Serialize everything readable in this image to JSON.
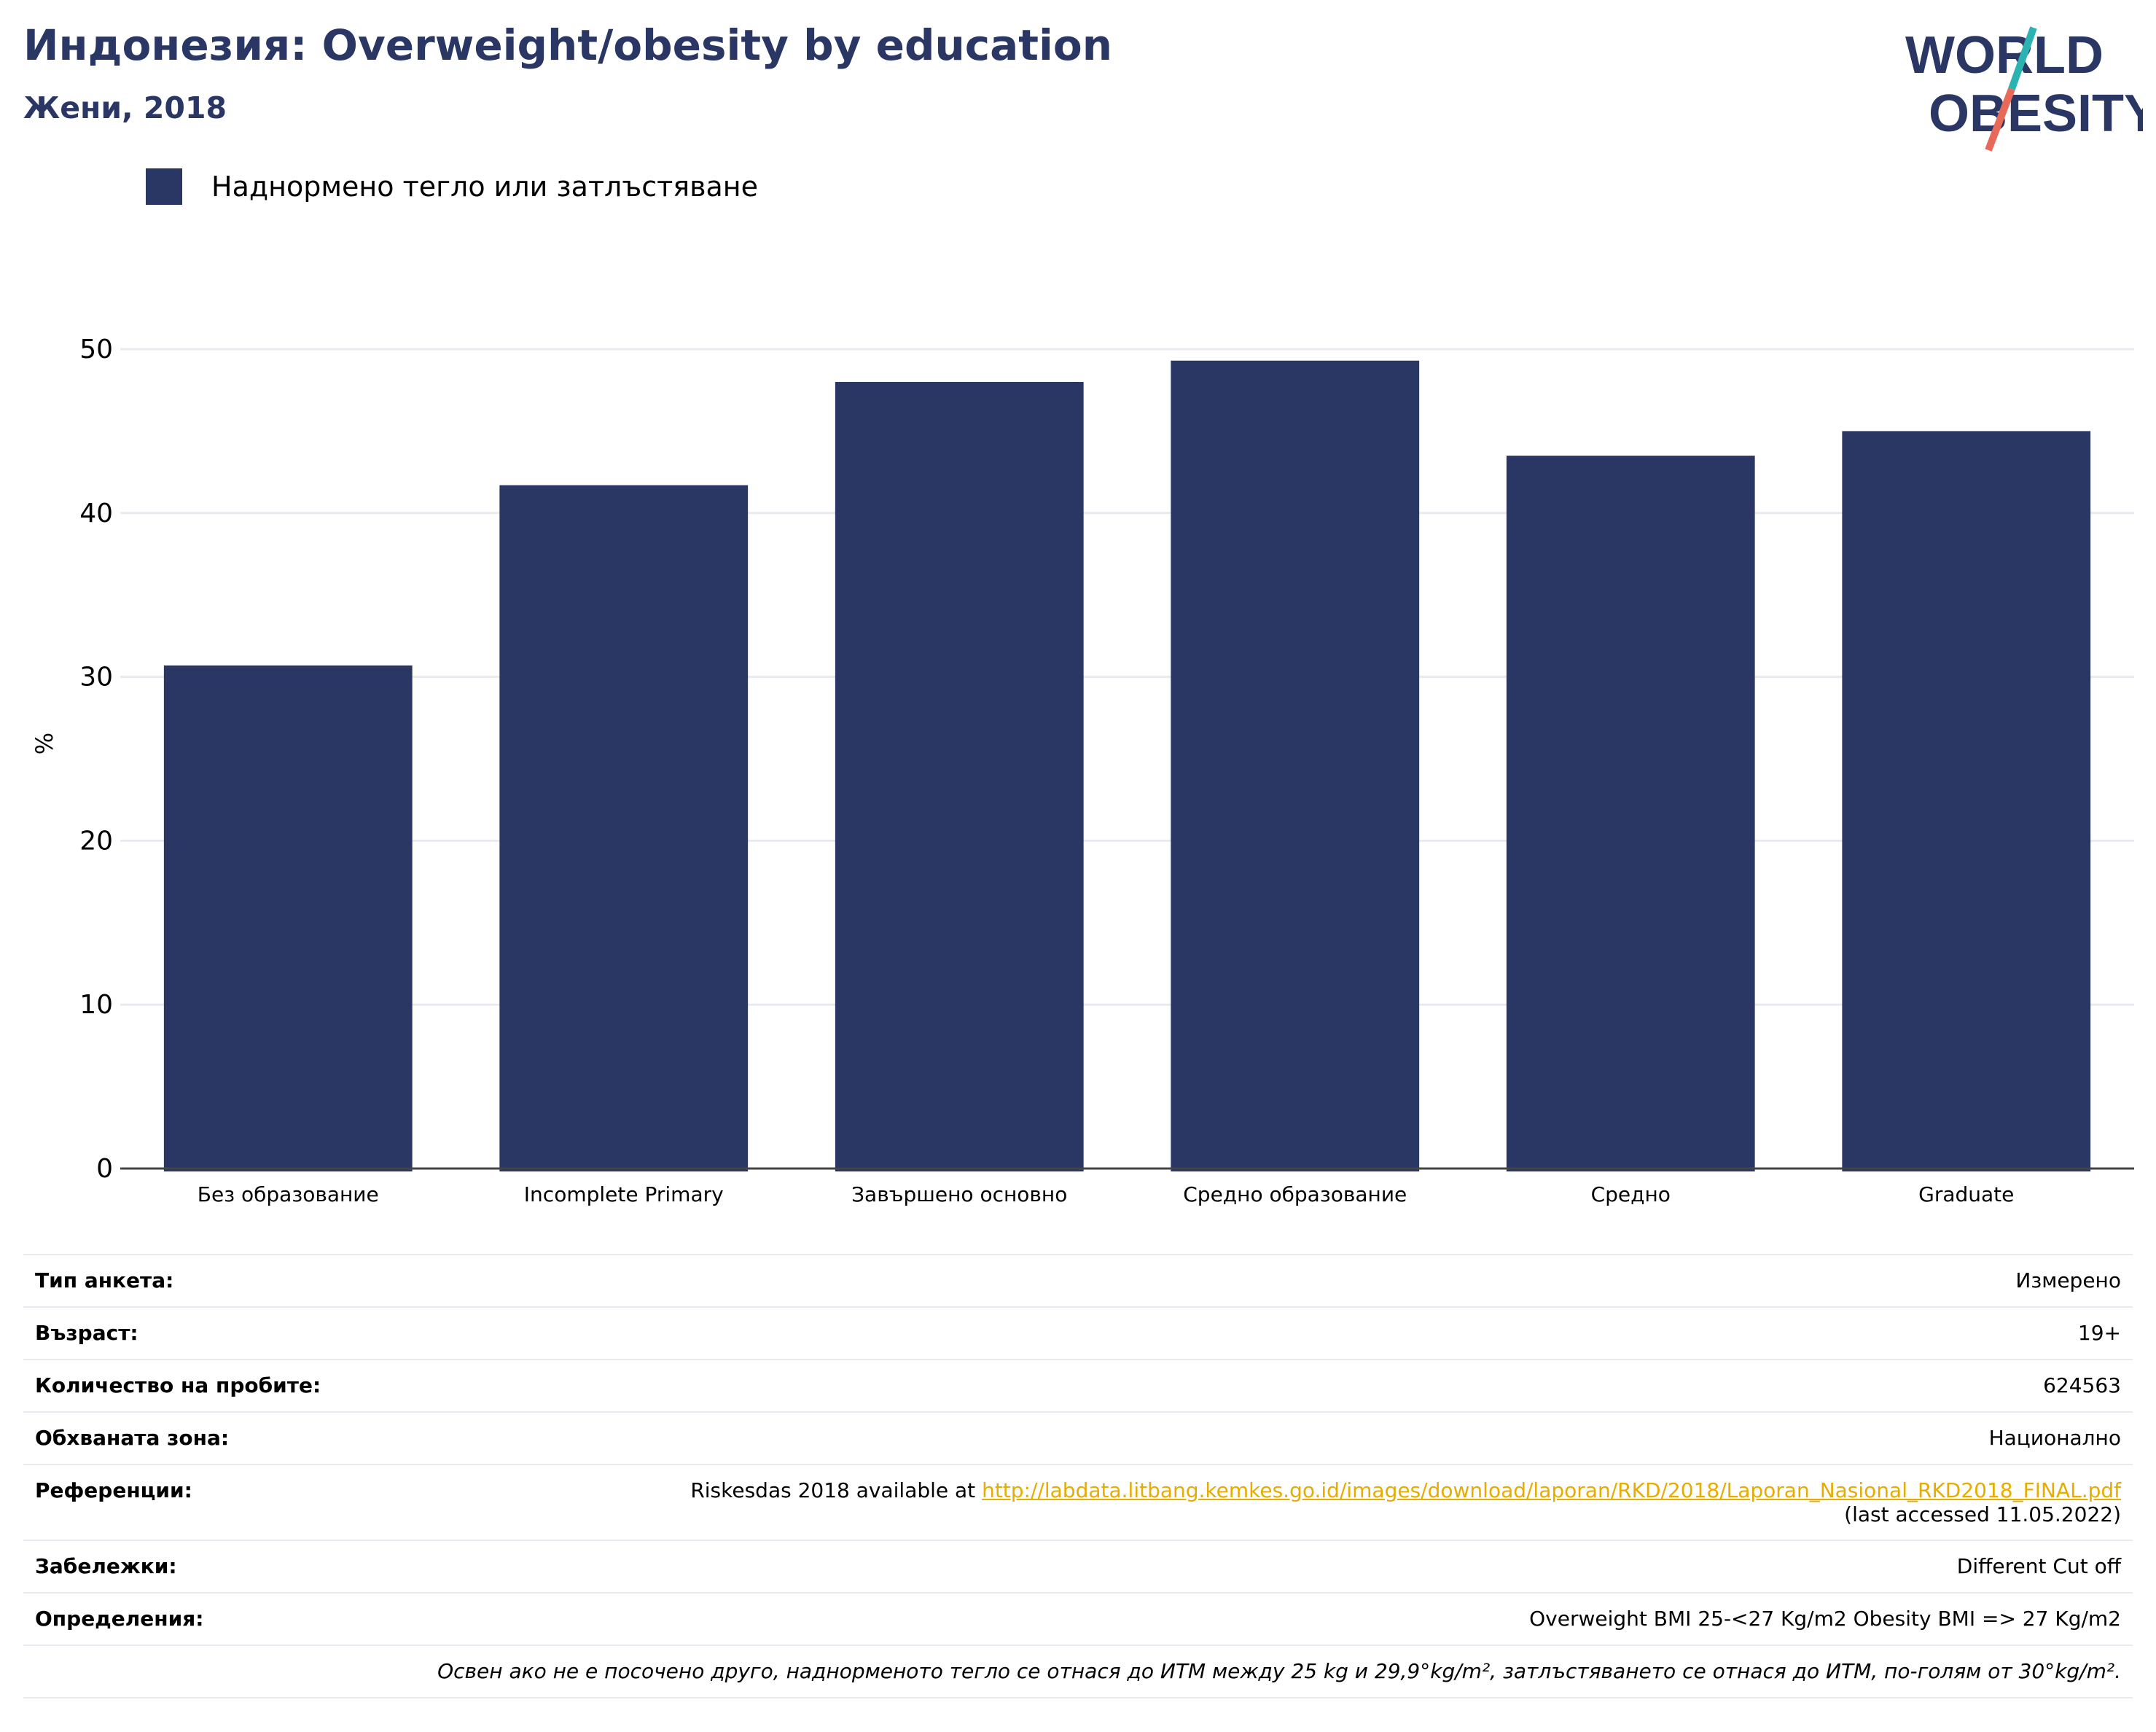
{
  "header": {
    "title": "Индонезия: Overweight/obesity by education",
    "subtitle": "Жени, 2018"
  },
  "logo": {
    "line1": "WORLD",
    "line2": "OBESITY"
  },
  "colors": {
    "bar": "#2a3663",
    "accent_teal": "#2ab3b1",
    "accent_red": "#e8685a",
    "link": "#e6ac00",
    "grid": "#e8eaf0"
  },
  "chart_data": {
    "type": "bar",
    "categories": [
      "Без образование",
      "Incomplete Primary",
      "Завършено основно",
      "Средно образование",
      "Средно",
      "Graduate"
    ],
    "series": [
      {
        "name": "Наднормено тегло или затлъстяване",
        "values": [
          30.7,
          41.7,
          48.0,
          49.3,
          43.5,
          45.0
        ]
      }
    ],
    "ylabel": "%",
    "ylim": [
      0,
      55
    ],
    "yticks": [
      0,
      10,
      20,
      30,
      40,
      50
    ],
    "grid": true,
    "legend": "top-left"
  },
  "info": {
    "survey_type": {
      "label": "Тип анкета:",
      "value": "Измерено"
    },
    "age": {
      "label": "Възраст:",
      "value": "19+"
    },
    "sample_size": {
      "label": "Количество на пробите:",
      "value": "624563"
    },
    "area": {
      "label": "Обхваната зона:",
      "value": "Национално"
    },
    "references": {
      "label": "Референции:",
      "prefix": "Riskesdas 2018 available at ",
      "link": "http://labdata.litbang.kemkes.go.id/images/download/laporan/RKD/2018/Laporan_Nasional_RKD2018_FINAL.pdf",
      "suffix": "(last accessed 11.05.2022)"
    },
    "notes": {
      "label": "Забележки:",
      "value": "Different Cut off"
    },
    "definitions": {
      "label": "Определения:",
      "value": "Overweight BMI 25-<27 Kg/m2 Obesity BMI => 27 Kg/m2"
    },
    "footnote": "Освен ако не е посочено друго, наднорменото тегло се отнася до ИТМ между 25 kg и 29,9°kg/m², затлъстяването се отнася до ИТМ, по-голям от 30°kg/m²."
  }
}
